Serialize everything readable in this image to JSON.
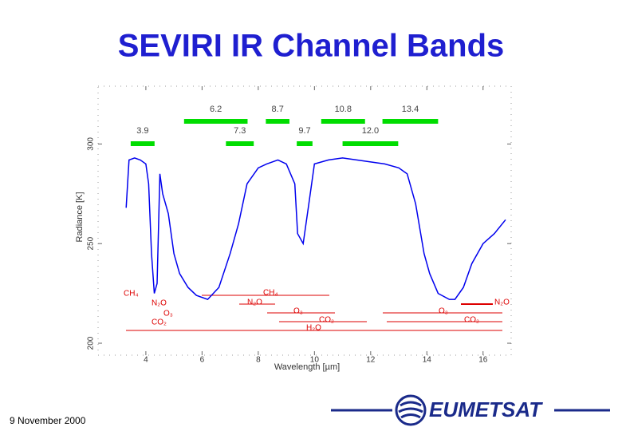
{
  "header": {
    "title": "SEVIRI IR Channel Bands"
  },
  "chart_data": {
    "type": "spectrum",
    "x_label": "Wavelength [µm]",
    "y_label": "Radiance [K]",
    "xlim": [
      2.3,
      17.0
    ],
    "xticks": [
      4,
      6,
      8,
      10,
      12,
      14,
      16
    ],
    "ylim": [
      194,
      329
    ],
    "yticks": [
      200,
      250,
      300
    ],
    "series": [
      {
        "name": "spectrum",
        "color": "#0000ee",
        "x": [
          3.3,
          3.4,
          3.6,
          3.8,
          4.0,
          4.1,
          4.2,
          4.3,
          4.4,
          4.5,
          4.6,
          4.8,
          5.0,
          5.2,
          5.5,
          5.8,
          6.2,
          6.6,
          7.0,
          7.3,
          7.6,
          8.0,
          8.3,
          8.7,
          9.0,
          9.3,
          9.4,
          9.6,
          9.8,
          10.0,
          10.5,
          11.0,
          11.5,
          12.0,
          12.5,
          13.0,
          13.3,
          13.6,
          13.9,
          14.1,
          14.4,
          14.8,
          15.0,
          15.3,
          15.6,
          16.0,
          16.4,
          16.8
        ],
        "values": [
          268,
          292,
          293,
          292,
          290,
          280,
          245,
          225,
          230,
          285,
          275,
          265,
          245,
          235,
          228,
          224,
          222,
          228,
          245,
          260,
          280,
          288,
          290,
          292,
          290,
          280,
          255,
          250,
          270,
          290,
          292,
          293,
          292,
          291,
          290,
          288,
          285,
          270,
          245,
          235,
          225,
          222,
          222,
          228,
          240,
          250,
          255,
          262
        ]
      }
    ],
    "band_color": "#00dd00",
    "bands": {
      "upper": [
        {
          "label": "6.2",
          "x": [
            5.36,
            7.62
          ]
        },
        {
          "label": "8.7",
          "x": [
            8.27,
            9.11
          ]
        },
        {
          "label": "10.8",
          "x": [
            10.24,
            11.8
          ]
        },
        {
          "label": "13.4",
          "x": [
            12.42,
            14.4
          ]
        }
      ],
      "lower": [
        {
          "label": "3.9",
          "x": [
            3.46,
            4.31
          ]
        },
        {
          "label": "7.3",
          "x": [
            6.85,
            7.84
          ]
        },
        {
          "label": "9.7",
          "x": [
            9.37,
            9.93
          ]
        },
        {
          "label": "12.0",
          "x": [
            11.0,
            12.98
          ]
        }
      ]
    },
    "absorbers": [
      "CH₄",
      "N₂O",
      "O₃",
      "CO₂",
      "CH₄",
      "N₂O",
      "O₃",
      "CO₂",
      "H₂O",
      "O₃",
      "CO₂",
      "N₂O"
    ]
  },
  "footer": {
    "date": "9 November 2000",
    "logo": "EUMETSAT"
  }
}
